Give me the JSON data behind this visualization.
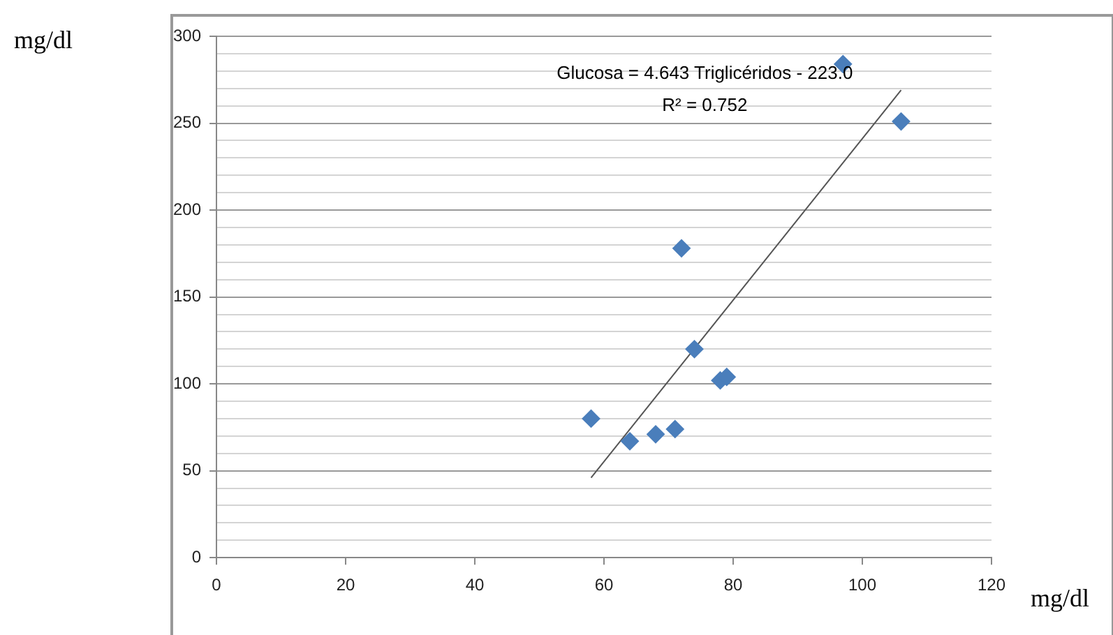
{
  "chart_data": {
    "type": "scatter",
    "xlabel": "mg/dl",
    "ylabel": "mg/dl",
    "series": [
      {
        "type": "scatter",
        "color": "#4a7ebb",
        "marker": "diamond",
        "x": [
          58,
          64,
          68,
          71,
          72,
          74,
          78,
          79,
          97,
          106
        ],
        "values": [
          80,
          67,
          71,
          74,
          178,
          120,
          102,
          104,
          284,
          251
        ]
      },
      {
        "type": "line",
        "color": "#555555",
        "marker": "none",
        "x": [
          58,
          106
        ],
        "values": [
          46,
          269
        ]
      }
    ],
    "xlim": [
      0,
      120
    ],
    "xticks": [
      0,
      20,
      40,
      60,
      80,
      100,
      120
    ],
    "ylim": [
      0,
      300
    ],
    "yticks": [
      0,
      {
        "value": 10,
        "label": null
      },
      {
        "value": 20,
        "label": null
      },
      {
        "value": 30,
        "label": null
      },
      {
        "value": 40,
        "label": null
      },
      50,
      {
        "value": 60,
        "label": null
      },
      {
        "value": 70,
        "label": null
      },
      {
        "value": 80,
        "label": null
      },
      {
        "value": 90,
        "label": null
      },
      100,
      {
        "value": 110,
        "label": null
      },
      {
        "value": 120,
        "label": null
      },
      {
        "value": 130,
        "label": null
      },
      {
        "value": 140,
        "label": null
      },
      150,
      {
        "value": 160,
        "label": null
      },
      {
        "value": 170,
        "label": null
      },
      {
        "value": 180,
        "label": null
      },
      {
        "value": 190,
        "label": null
      },
      200,
      {
        "value": 210,
        "label": null
      },
      {
        "value": 220,
        "label": null
      },
      {
        "value": 230,
        "label": null
      },
      {
        "value": 240,
        "label": null
      },
      250,
      {
        "value": 260,
        "label": null
      },
      {
        "value": 270,
        "label": null
      },
      {
        "value": 280,
        "label": null
      },
      {
        "value": 290,
        "label": null
      },
      300
    ],
    "grid": "y",
    "legend": false,
    "annotations": [
      "Glucosa = 4.643 Triglicéridos - 223.0",
      "R² = 0.752"
    ]
  }
}
